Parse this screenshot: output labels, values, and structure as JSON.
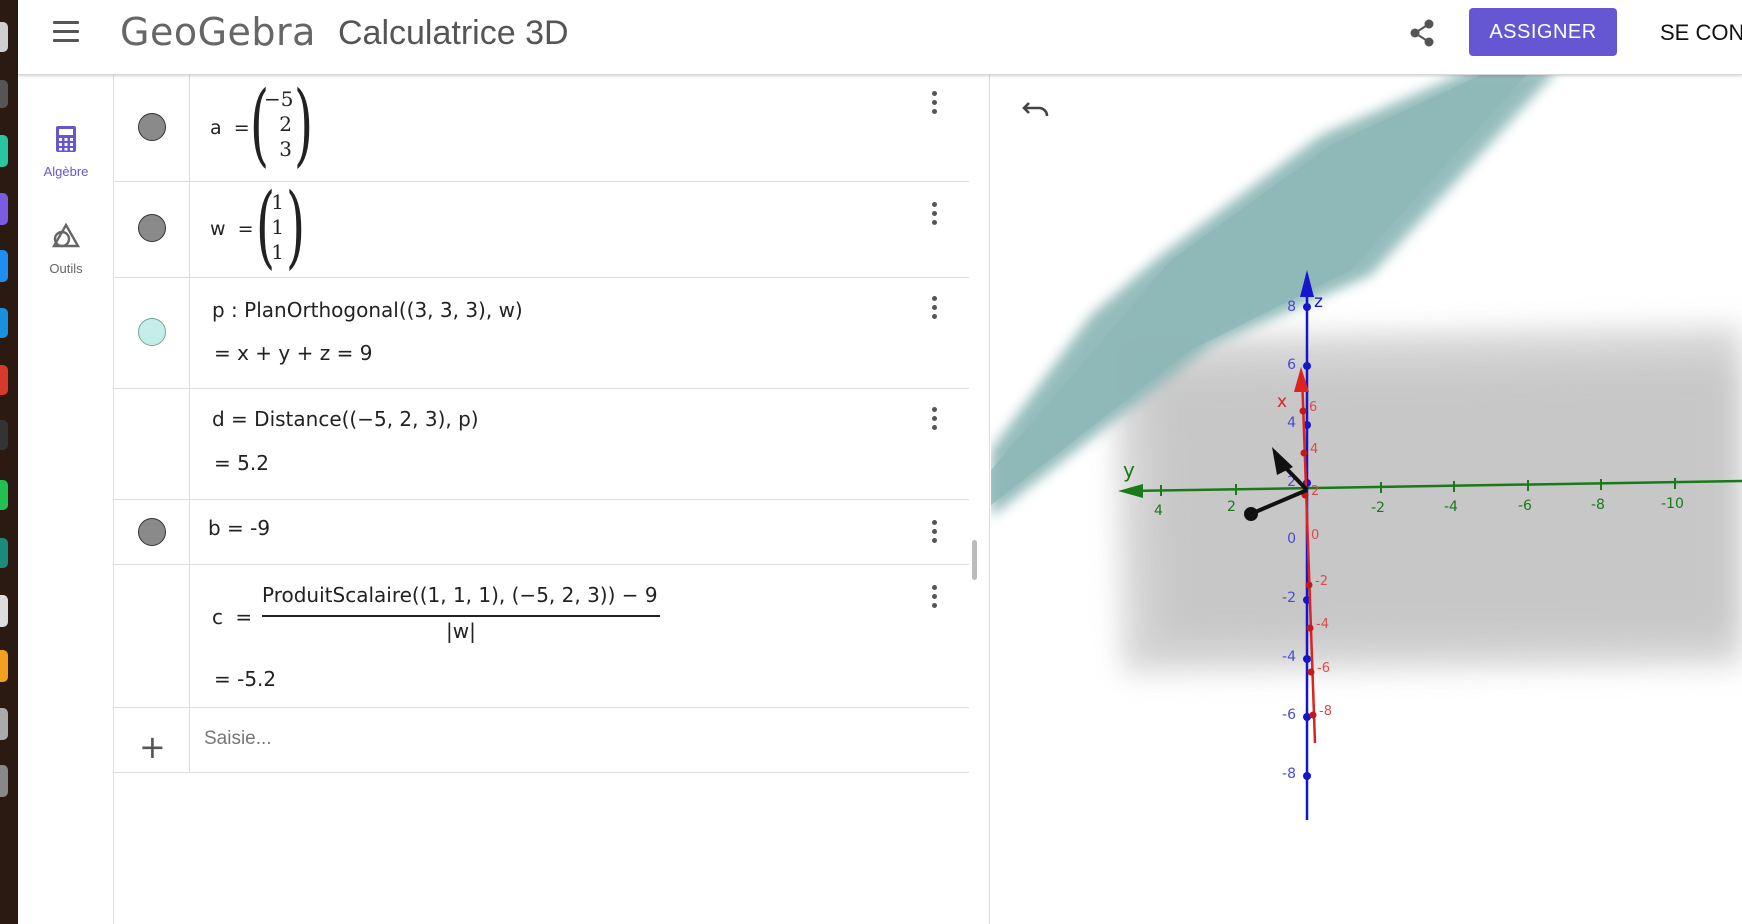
{
  "header": {
    "logo": "GeoGebra",
    "app_title": "Calculatrice 3D",
    "assign_label": "ASSIGNER",
    "connect_label": "SE CON",
    "accent_color": "#6557d2"
  },
  "rail": {
    "items": [
      {
        "label": "Algèbre",
        "icon": "calculator-icon",
        "active": true
      },
      {
        "label": "Outils",
        "icon": "shapes-icon",
        "active": false
      }
    ]
  },
  "algebra": {
    "rows": [
      {
        "name": "a",
        "eq": "=",
        "vector": [
          "−5",
          "2",
          "3"
        ],
        "marble": "gray"
      },
      {
        "name": "w",
        "eq": "=",
        "vector": [
          "1",
          "1",
          "1"
        ],
        "marble": "gray"
      },
      {
        "definition": "p : PlanOrthogonal((3,  3,  3), w)",
        "value": "=   x + y + z  =  9",
        "marble": "cyan"
      },
      {
        "definition": "d  =  Distance((−5,  2,  3), p)",
        "value": "=  5.2",
        "marble": "none"
      },
      {
        "definition": "b = -9",
        "marble": "gray"
      },
      {
        "name": "c",
        "eq": "=",
        "numerator": "ProduitScalaire((1,  1,  1), (−5,  2,  3)) − 9",
        "denominator": "|w|",
        "value": "=  -5.2",
        "marble": "none"
      }
    ],
    "input_placeholder": "Saisie..."
  },
  "view3d": {
    "axes": {
      "z_label": "z",
      "x_label": "x",
      "y_label": "y",
      "z_ticks": [
        "8",
        "6",
        "4",
        "2",
        "0",
        "-2",
        "-4",
        "-6",
        "-8"
      ],
      "x_ticks": [
        "6",
        "4",
        "2",
        "0",
        "-2",
        "-4",
        "-6",
        "-8"
      ],
      "y_ticks": [
        "4",
        "2",
        "-2",
        "-4",
        "-6",
        "-8",
        "-10"
      ],
      "z_color": "#1515cc",
      "x_color": "#dd2222",
      "y_color": "#1a7a1a"
    },
    "plane_color": "#8db7b7"
  }
}
